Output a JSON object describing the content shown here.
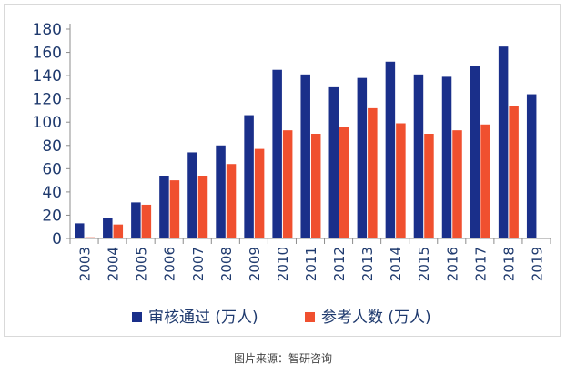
{
  "caption": "图片来源：智研咨询",
  "colors": {
    "series1": "#1a2f8a",
    "series2": "#f0502f",
    "axis": "#8c8c8c",
    "text": "#1f3a6e"
  },
  "chart_data": {
    "type": "bar",
    "title": "",
    "xlabel": "",
    "ylabel": "",
    "ylim": [
      0,
      180
    ],
    "yticks": [
      0,
      20,
      40,
      60,
      80,
      100,
      120,
      140,
      160,
      180
    ],
    "grid": false,
    "legend_position": "bottom",
    "categories": [
      "2003",
      "2004",
      "2005",
      "2006",
      "2007",
      "2008",
      "2009",
      "2010",
      "2011",
      "2012",
      "2013",
      "2014",
      "2015",
      "2016",
      "2017",
      "2018",
      "2019"
    ],
    "series": [
      {
        "name": "审核通过 (万人)",
        "color": "#1a2f8a",
        "values": [
          13,
          18,
          31,
          54,
          74,
          80,
          106,
          145,
          141,
          130,
          138,
          152,
          141,
          139,
          148,
          165,
          124
        ]
      },
      {
        "name": "参考人数 (万人)",
        "color": "#f0502f",
        "values": [
          1,
          12,
          29,
          50,
          54,
          64,
          77,
          93,
          90,
          96,
          112,
          99,
          90,
          93,
          98,
          114,
          null
        ]
      }
    ]
  }
}
